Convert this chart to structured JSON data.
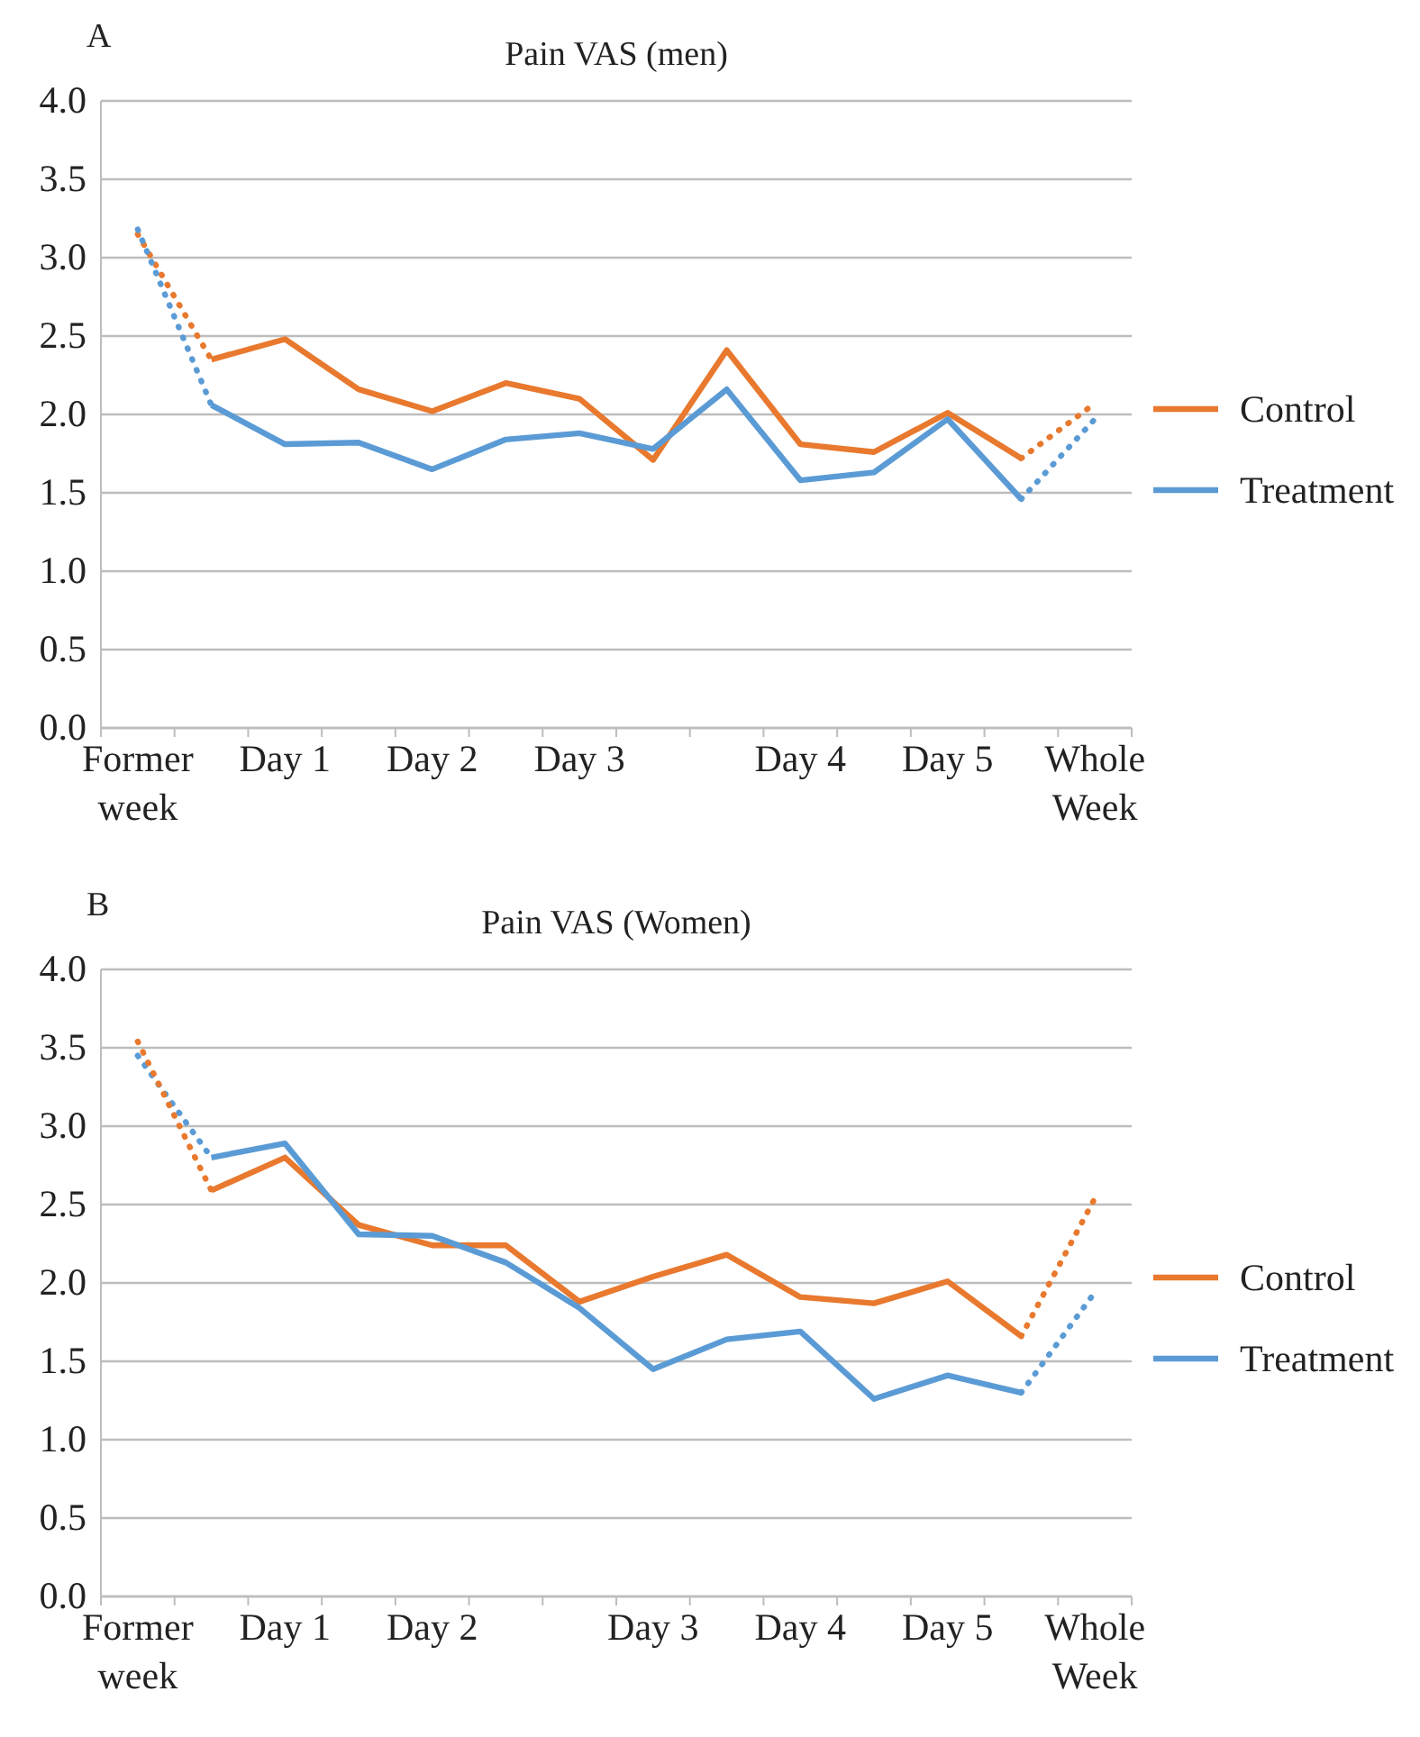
{
  "chart_data": [
    {
      "type": "line",
      "title": "Pain VAS (men)",
      "annotations": [
        "A"
      ],
      "categories": [
        "Former week",
        null,
        "Day 1",
        null,
        "Day 2",
        null,
        "Day 3",
        null,
        null,
        "Day 4",
        null,
        "Day 5",
        null,
        "Whole Week"
      ],
      "ylim": [
        0,
        4
      ],
      "yticks": [
        {
          "value": 0,
          "label": "0.0"
        },
        {
          "value": 0.5,
          "label": "0.5"
        },
        {
          "value": 1,
          "label": "1.0"
        },
        {
          "value": 1.5,
          "label": "1.5"
        },
        {
          "value": 2,
          "label": "2.0"
        },
        {
          "value": 2.5,
          "label": "2.5"
        },
        {
          "value": 3,
          "label": "3.0"
        },
        {
          "value": 3.5,
          "label": "3.5"
        },
        {
          "value": 4,
          "label": "4.0"
        }
      ],
      "grid": "y",
      "legend": "right",
      "series": [
        {
          "name": "Control",
          "color": "#e8792e",
          "line_style": "solid",
          "values": [
            null,
            2.35,
            2.48,
            2.16,
            2.02,
            2.2,
            2.1,
            1.71,
            2.41,
            1.81,
            1.76,
            2.01,
            1.72,
            null
          ]
        },
        {
          "name": "Treatment",
          "color": "#5b9bd5",
          "line_style": "solid",
          "values": [
            null,
            2.06,
            1.81,
            1.82,
            1.65,
            1.84,
            1.88,
            1.78,
            2.16,
            1.58,
            1.63,
            1.97,
            1.46,
            null
          ]
        },
        {
          "color": "#e8792e",
          "line_style": "dotted",
          "values": [
            3.15,
            2.35,
            null,
            null,
            null,
            null,
            null,
            null,
            null,
            null,
            null,
            null,
            1.72,
            2.07
          ]
        },
        {
          "color": "#5b9bd5",
          "line_style": "dotted",
          "values": [
            3.18,
            2.06,
            null,
            null,
            null,
            null,
            null,
            null,
            null,
            null,
            null,
            null,
            1.46,
            1.97
          ]
        }
      ]
    },
    {
      "type": "line",
      "title": "Pain VAS (Women)",
      "annotations": [
        "B"
      ],
      "categories": [
        "Former week",
        null,
        "Day 1",
        null,
        "Day 2",
        null,
        null,
        "Day 3",
        null,
        "Day 4",
        null,
        "Day 5",
        null,
        "Whole Week"
      ],
      "ylim": [
        0,
        4
      ],
      "yticks": [
        {
          "value": 0,
          "label": "0.0"
        },
        {
          "value": 0.5,
          "label": "0.5"
        },
        {
          "value": 1,
          "label": "1.0"
        },
        {
          "value": 1.5,
          "label": "1.5"
        },
        {
          "value": 2,
          "label": "2.0"
        },
        {
          "value": 2.5,
          "label": "2.5"
        },
        {
          "value": 3,
          "label": "3.0"
        },
        {
          "value": 3.5,
          "label": "3.5"
        },
        {
          "value": 4,
          "label": "4.0"
        }
      ],
      "grid": "y",
      "legend": "right",
      "series": [
        {
          "name": "Control",
          "color": "#e8792e",
          "line_style": "solid",
          "values": [
            null,
            2.59,
            2.8,
            2.37,
            2.24,
            2.24,
            1.88,
            2.04,
            2.18,
            1.91,
            1.87,
            2.01,
            1.66,
            null
          ]
        },
        {
          "name": "Treatment",
          "color": "#5b9bd5",
          "line_style": "solid",
          "values": [
            null,
            2.8,
            2.89,
            2.31,
            2.3,
            2.13,
            1.84,
            1.45,
            1.64,
            1.69,
            1.26,
            1.41,
            1.3,
            null
          ]
        },
        {
          "color": "#5b9bd5",
          "line_style": "dotted",
          "values": [
            3.45,
            2.8,
            null,
            null,
            null,
            null,
            null,
            null,
            null,
            null,
            null,
            null,
            1.3,
            1.94
          ]
        },
        {
          "color": "#e8792e",
          "line_style": "dotted",
          "values": [
            3.54,
            2.59,
            null,
            null,
            null,
            null,
            null,
            null,
            null,
            null,
            null,
            null,
            1.66,
            2.54
          ]
        }
      ]
    }
  ]
}
